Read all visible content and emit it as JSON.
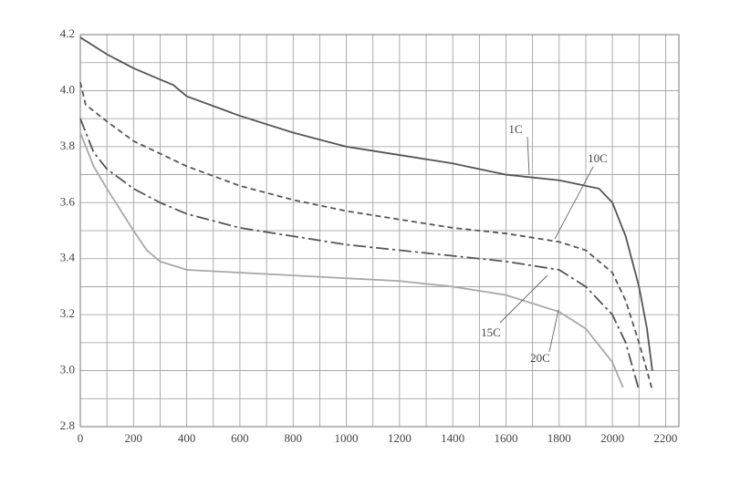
{
  "chart_data": {
    "type": "line",
    "xlim": [
      0,
      2250
    ],
    "ylim": [
      2.8,
      4.2
    ],
    "xticks": [
      0,
      200,
      400,
      600,
      800,
      1000,
      1200,
      1400,
      1600,
      1800,
      2000,
      2200
    ],
    "yticks": [
      {
        "value": 2.8,
        "label": "2.8"
      },
      {
        "value": 3,
        "label": "3.0"
      },
      3.2,
      3.4,
      3.6,
      3.8,
      {
        "value": 4,
        "label": "4.0"
      },
      4.2
    ],
    "x_minor_grid": [
      100,
      300,
      500,
      700,
      900,
      1100,
      1300,
      1500,
      1700,
      1900,
      2100
    ],
    "y_minor_grid": [
      2.9,
      3.1,
      3.3,
      3.5,
      3.7,
      3.9,
      4.1
    ],
    "grid": true,
    "series": [
      {
        "name": "1C",
        "color": "#555555",
        "dash": "none",
        "x": [
          0,
          100,
          200,
          300,
          350,
          400,
          600,
          800,
          1000,
          1200,
          1400,
          1600,
          1800,
          1900,
          1950,
          2000,
          2050,
          2100,
          2130,
          2150
        ],
        "values": [
          4.19,
          4.13,
          4.08,
          4.04,
          4.02,
          3.98,
          3.91,
          3.85,
          3.8,
          3.77,
          3.74,
          3.7,
          3.68,
          3.66,
          3.65,
          3.6,
          3.48,
          3.3,
          3.15,
          3.0
        ]
      },
      {
        "name": "10C",
        "color": "#555555",
        "dash": "6,4",
        "x": [
          0,
          20,
          100,
          200,
          400,
          600,
          800,
          1000,
          1200,
          1400,
          1600,
          1800,
          1900,
          2000,
          2050,
          2100,
          2130,
          2150
        ],
        "values": [
          4.03,
          3.95,
          3.89,
          3.82,
          3.73,
          3.66,
          3.61,
          3.57,
          3.54,
          3.51,
          3.49,
          3.46,
          3.43,
          3.35,
          3.25,
          3.1,
          3.0,
          2.93
        ]
      },
      {
        "name": "15C",
        "color": "#555555",
        "dash": "14,4,3,4",
        "x": [
          0,
          50,
          100,
          200,
          300,
          400,
          600,
          800,
          1000,
          1200,
          1400,
          1600,
          1800,
          1900,
          2000,
          2050,
          2100
        ],
        "values": [
          3.9,
          3.78,
          3.72,
          3.65,
          3.6,
          3.56,
          3.51,
          3.48,
          3.45,
          3.43,
          3.41,
          3.39,
          3.36,
          3.3,
          3.2,
          3.1,
          2.93
        ]
      },
      {
        "name": "20C",
        "color": "#a8a8a8",
        "dash": "none",
        "x": [
          0,
          50,
          100,
          200,
          250,
          300,
          400,
          600,
          800,
          1000,
          1200,
          1400,
          1600,
          1800,
          1900,
          2000,
          2040
        ],
        "values": [
          3.85,
          3.73,
          3.65,
          3.5,
          3.43,
          3.39,
          3.36,
          3.35,
          3.34,
          3.33,
          3.32,
          3.3,
          3.27,
          3.21,
          3.15,
          3.03,
          2.94
        ]
      }
    ]
  }
}
